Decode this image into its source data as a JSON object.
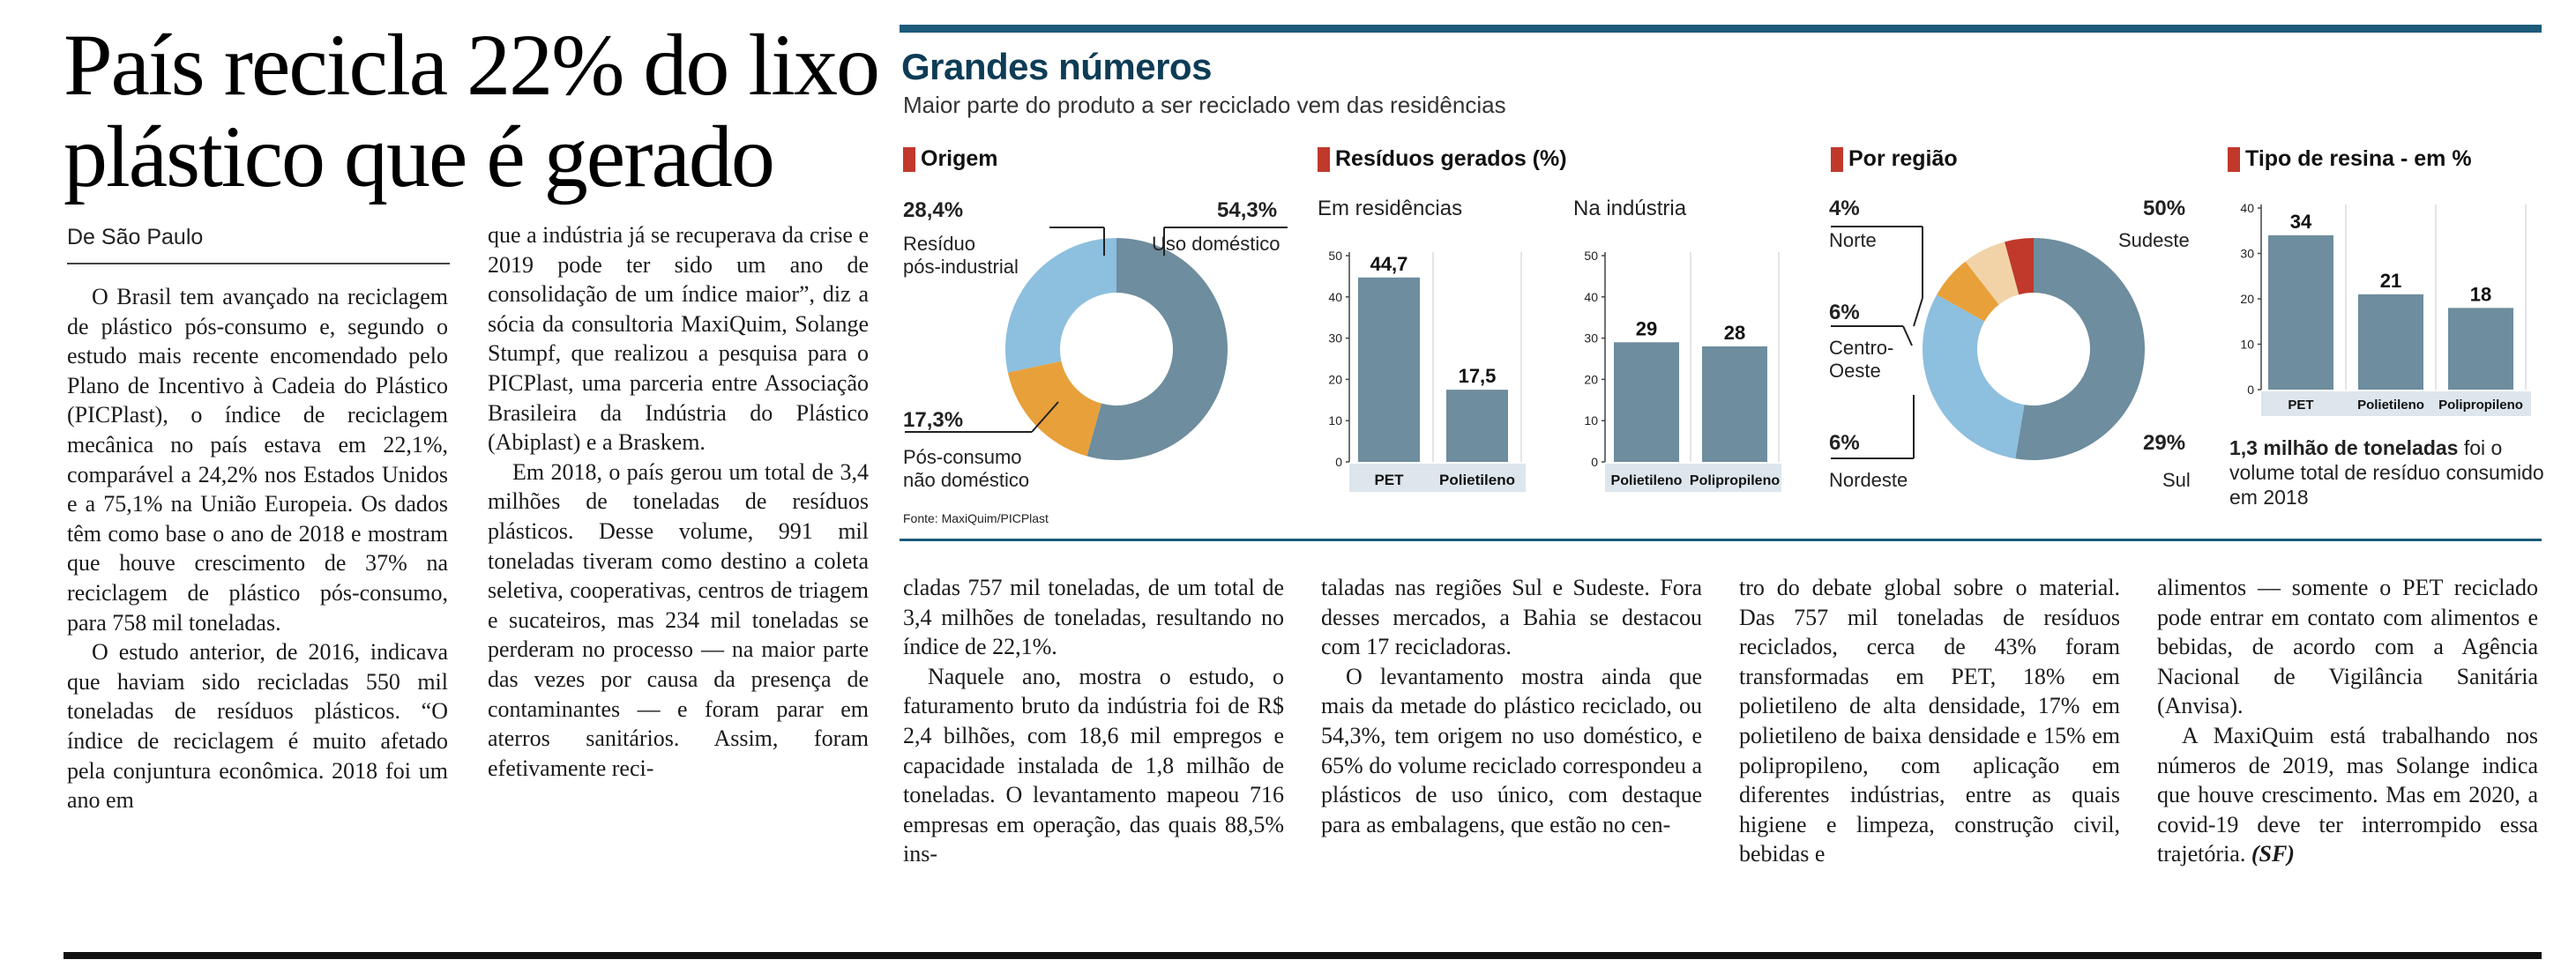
{
  "article": {
    "headline": "País recicla 22% do lixo plástico que é gerado",
    "byline": "De São Paulo",
    "columns": [
      [
        "O Brasil tem avançado na reciclagem de plástico pós-consumo e, segundo o estudo mais recente encomendado pelo Plano de Incentivo à Cadeia do Plástico (PICPlast), o índice de reciclagem mecânica no país estava em 22,1%, comparável a 24,2% nos Estados Unidos e a 75,1% na União Europeia. Os dados têm como base o ano de 2018 e mostram que houve crescimento de 37% na reciclagem de plástico pós-consumo, para 758 mil toneladas.",
        "O estudo anterior, de 2016, indicava que haviam sido recicladas 550 mil toneladas de resíduos plásticos. “O índice de reciclagem é muito afetado pela conjuntura econômica. 2018 foi um ano em"
      ],
      [
        "que a indústria já se recuperava da crise e 2019 pode ter sido um ano de consolidação de um índice maior”, diz a sócia da consultoria MaxiQuim, Solange Stumpf, que realizou a pesquisa para o PICPlast, uma parceria entre Associação Brasileira da Indústria do Plástico (Abiplast) e a Braskem.",
        "Em 2018, o país gerou um total de 3,4 milhões de toneladas de resíduos plásticos. Desse volume, 991 mil toneladas tiveram como destino a coleta seletiva, cooperativas, centros de triagem e sucateiros, mas 234 mil toneladas se perderam no processo — na maior parte das vezes por causa da presença de contaminantes — e foram parar em aterros sanitários. Assim, foram efetivamente reci-"
      ],
      [
        "cladas 757 mil toneladas, de um total de 3,4 milhões de toneladas, resultando no índice de 22,1%.",
        "Naquele ano, mostra o estudo, o faturamento bruto da indústria foi de R$ 2,4 bilhões, com 18,6 mil empregos e capacidade instalada de 1,8 milhão de toneladas. O levantamento mapeou 716 empresas em operação, das quais 88,5% ins-"
      ],
      [
        "taladas nas regiões Sul e Sudeste. Fora desses mercados, a Bahia se destacou com 17 recicladoras.",
        "O levantamento mostra ainda que mais da metade do plástico reciclado, ou 54,3%, tem origem no uso doméstico, e 65% do volume reciclado correspondeu a plásticos de uso único, com destaque para as embalagens, que estão no cen-"
      ],
      [
        "tro do debate global sobre o material. Das 757 mil toneladas de resíduos reciclados, cerca de 43% foram transformadas em PET, 18% em polietileno de alta densidade, 17% em polietileno de baixa densidade e 15% em polipropileno, com aplicação em diferentes indústrias, entre as quais higiene e limpeza, construção civil, bebidas e"
      ],
      [
        "alimentos — somente o PET reciclado pode entrar em contato com alimentos e bebidas, de acordo com a Agência Nacional de Vigilância Sanitária (Anvisa).",
        "A MaxiQuim está trabalhando nos números de 2019, mas Solange indica que houve crescimento. Mas em 2020, a covid-19 deve ter interrompido essa trajetória.",
        "(SF)"
      ]
    ]
  },
  "infographic": {
    "title": "Grandes números",
    "subtitle": "Maior parte do produto a ser reciclado vem das residências",
    "source": "Fonte: MaxiQuim/PICPlast",
    "colors": {
      "steel": "#6e8d9e",
      "light_blue": "#8dbfde",
      "orange": "#e8a03a",
      "red": "#c0392b",
      "beige": "#f2d3a8",
      "axis_band": "#dde6ec",
      "rule": "#1c5a7a"
    },
    "origem": {
      "title": "Origem",
      "label_industrial_pct": "28,4%",
      "label_industrial_1": "Resíduo",
      "label_industrial_2": "pós-industrial",
      "label_domestic_pct": "54,3%",
      "label_domestic": "Uso doméstico",
      "label_nondomestic_pct": "17,3%",
      "label_nondomestic_1": "Pós-consumo",
      "label_nondomestic_2": "não doméstico"
    },
    "residuos": {
      "title": "Resíduos gerados (%)",
      "sub_res": "Em residências",
      "sub_ind": "Na indústria"
    },
    "regiao": {
      "title": "Por região",
      "norte_pct": "4%",
      "norte": "Norte",
      "sudeste_pct": "50%",
      "sudeste": "Sudeste",
      "centro_pct": "6%",
      "centro_1": "Centro-",
      "centro_2": "Oeste",
      "nordeste_pct": "6%",
      "nordeste": "Nordeste",
      "sul_pct": "29%",
      "sul": "Sul"
    },
    "resina": {
      "title": "Tipo de resina - em %",
      "note_bold": "1,3 milhão de toneladas",
      "note_1": " foi o",
      "note_2": "volume total de resíduo consumido",
      "note_3": "em 2018"
    }
  },
  "chart_data": [
    {
      "type": "pie",
      "title": "Origem",
      "categories": [
        "Uso doméstico",
        "Pós-consumo não doméstico",
        "Resíduo pós-industrial"
      ],
      "values": [
        54.3,
        17.3,
        28.4
      ],
      "colors": [
        "#6e8d9e",
        "#e8a03a",
        "#8dbfde"
      ]
    },
    {
      "type": "bar",
      "title": "Em residências",
      "categories": [
        "PET",
        "Polietileno"
      ],
      "values": [
        44.7,
        17.5
      ],
      "value_labels": [
        "44,7",
        "17,5"
      ],
      "ylim": [
        0,
        50
      ],
      "yticks": [
        "0",
        "10",
        "20",
        "30",
        "40",
        "50"
      ]
    },
    {
      "type": "bar",
      "title": "Na indústria",
      "categories": [
        "Polietileno",
        "Polipropileno"
      ],
      "values": [
        29,
        28
      ],
      "value_labels": [
        "29",
        "28"
      ],
      "ylim": [
        0,
        50
      ],
      "yticks": [
        "0",
        "10",
        "20",
        "30",
        "40",
        "50"
      ]
    },
    {
      "type": "pie",
      "title": "Por região",
      "categories": [
        "Sudeste",
        "Sul",
        "Nordeste",
        "Centro-Oeste",
        "Norte"
      ],
      "values": [
        50,
        29,
        6,
        6,
        4
      ],
      "colors": [
        "#6e8d9e",
        "#8dbfde",
        "#e8a03a",
        "#f2d3a8",
        "#c0392b"
      ]
    },
    {
      "type": "bar",
      "title": "Tipo de resina - em %",
      "categories": [
        "PET",
        "Polietileno",
        "Polipropileno"
      ],
      "values": [
        34,
        21,
        18
      ],
      "value_labels": [
        "34",
        "21",
        "18"
      ],
      "ylim": [
        0,
        40
      ],
      "yticks": [
        "0",
        "10",
        "20",
        "30",
        "40"
      ]
    }
  ]
}
